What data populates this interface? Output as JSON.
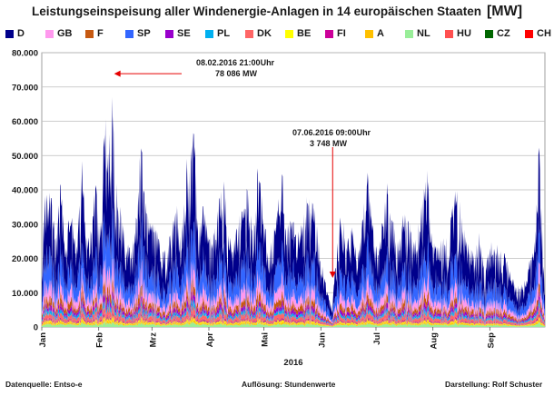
{
  "chart_data": {
    "type": "area",
    "stacked": true,
    "title": "Leistungseinspeisung aller Windenergie-Anlagen in 14 europäischen Staaten",
    "title_unit": "[MW]",
    "xlabel": "2016",
    "ylabel": "",
    "ylim": [
      0,
      80000
    ],
    "yticks": [
      "0",
      "10.000",
      "20.000",
      "30.000",
      "40.000",
      "50.000",
      "60.000",
      "70.000",
      "80.000"
    ],
    "x_categories": [
      "Jan",
      "Feb",
      "Mrz",
      "Apr",
      "Mai",
      "Jun",
      "Jul",
      "Aug",
      "Sep"
    ],
    "x_range_days": [
      0,
      274
    ],
    "grid": true,
    "legend_position": "top",
    "series": [
      {
        "name": "D",
        "color": "#00008b"
      },
      {
        "name": "GB",
        "color": "#ff99ee"
      },
      {
        "name": "F",
        "color": "#c65911"
      },
      {
        "name": "SP",
        "color": "#3366ff"
      },
      {
        "name": "SE",
        "color": "#9900cc"
      },
      {
        "name": "PL",
        "color": "#00b0f0"
      },
      {
        "name": "DK",
        "color": "#ff6666"
      },
      {
        "name": "BE",
        "color": "#ffff00"
      },
      {
        "name": "FI",
        "color": "#cc0099"
      },
      {
        "name": "A",
        "color": "#ffc000"
      },
      {
        "name": "NL",
        "color": "#99ee99"
      },
      {
        "name": "HU",
        "color": "#ff5050"
      },
      {
        "name": "CZ",
        "color": "#006600"
      },
      {
        "name": "CH",
        "color": "#ff0000"
      }
    ],
    "annotations": [
      {
        "line1": "08.02.2016  21:00Uhr",
        "line2": "78 086 MW",
        "day": 38.9,
        "value": 74000
      },
      {
        "line1": "07.06.2016  09:00Uhr",
        "line2": "3 748 MW",
        "day": 158.4,
        "value": 3748
      }
    ]
  },
  "footer": {
    "left": "Datenquelle: Entso-e",
    "center": "Auflösung:  Stundenwerte",
    "right": "Darstellung: Rolf Schuster"
  }
}
